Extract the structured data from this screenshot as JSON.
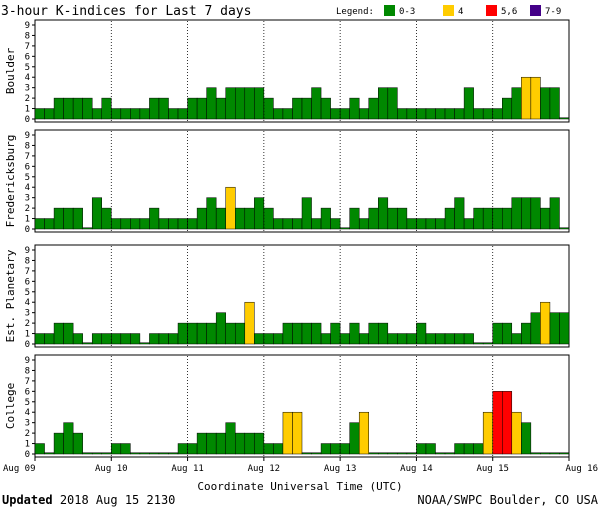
{
  "chart_data": {
    "type": "bar",
    "title": "3-hour K-indices for Last 7 days",
    "legend_title": "Legend:",
    "legend": [
      {
        "label": "0-3",
        "color": "#008800",
        "min": 0,
        "max": 3
      },
      {
        "label": "4",
        "color": "#ffcc00",
        "min": 4,
        "max": 4
      },
      {
        "label": "5,6",
        "color": "#ff0000",
        "min": 5,
        "max": 6
      },
      {
        "label": "7-9",
        "color": "#440088",
        "min": 7,
        "max": 9
      }
    ],
    "xlabel": "Coordinate Universal Time (UTC)",
    "x_ticks": [
      "Aug 09",
      "Aug 10",
      "Aug 11",
      "Aug 12",
      "Aug 13",
      "Aug 14",
      "Aug 15",
      "Aug 16"
    ],
    "ylim": [
      0,
      9
    ],
    "y_ticks": [
      0,
      1,
      2,
      3,
      4,
      5,
      6,
      7,
      8,
      9
    ],
    "intervals_per_day": 8,
    "series": [
      {
        "name": "Boulder",
        "values": [
          1,
          1,
          2,
          2,
          2,
          2,
          1,
          2,
          1,
          1,
          1,
          1,
          2,
          2,
          1,
          1,
          2,
          2,
          3,
          2,
          3,
          3,
          3,
          3,
          2,
          1,
          1,
          2,
          2,
          3,
          2,
          1,
          1,
          2,
          1,
          2,
          3,
          3,
          1,
          1,
          1,
          1,
          1,
          1,
          1,
          3,
          1,
          1,
          1,
          2,
          3,
          4,
          4,
          3,
          3,
          0
        ]
      },
      {
        "name": "Fredericksburg",
        "values": [
          1,
          1,
          2,
          2,
          2,
          0,
          3,
          2,
          1,
          1,
          1,
          1,
          2,
          1,
          1,
          1,
          1,
          2,
          3,
          2,
          4,
          2,
          2,
          3,
          2,
          1,
          1,
          1,
          3,
          1,
          2,
          1,
          0,
          2,
          1,
          2,
          3,
          2,
          2,
          1,
          1,
          1,
          1,
          2,
          3,
          1,
          2,
          2,
          2,
          2,
          3,
          3,
          3,
          2,
          3,
          0
        ]
      },
      {
        "name": "Est. Planetary",
        "values": [
          1,
          1,
          2,
          2,
          1,
          0,
          1,
          1,
          1,
          1,
          1,
          0,
          1,
          1,
          1,
          2,
          2,
          2,
          2,
          3,
          2,
          2,
          4,
          1,
          1,
          1,
          2,
          2,
          2,
          2,
          1,
          2,
          1,
          2,
          1,
          2,
          2,
          1,
          1,
          1,
          2,
          1,
          1,
          1,
          1,
          1,
          0,
          0,
          2,
          2,
          1,
          2,
          3,
          4,
          3,
          3
        ]
      },
      {
        "name": "College",
        "values": [
          1,
          0,
          2,
          3,
          2,
          0,
          0,
          0,
          1,
          1,
          0,
          0,
          0,
          0,
          0,
          1,
          1,
          2,
          2,
          2,
          3,
          2,
          2,
          2,
          1,
          1,
          4,
          4,
          0,
          0,
          1,
          1,
          1,
          3,
          4,
          0,
          0,
          0,
          0,
          0,
          1,
          1,
          0,
          0,
          1,
          1,
          1,
          4,
          6,
          6,
          4,
          3,
          0,
          0,
          0,
          0
        ]
      }
    ]
  },
  "footer": {
    "updated_label": "Updated",
    "updated_value": "2018 Aug 15 2130",
    "source": "NOAA/SWPC Boulder, CO USA"
  }
}
